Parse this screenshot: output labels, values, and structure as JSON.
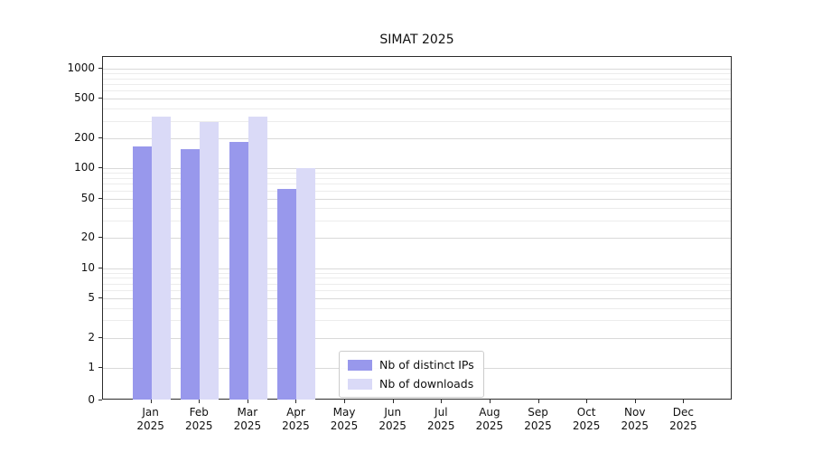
{
  "chart_data": {
    "type": "bar",
    "title": "SIMAT 2025",
    "categories": [
      "Jan",
      "Feb",
      "Mar",
      "Apr",
      "May",
      "Jun",
      "Jul",
      "Aug",
      "Sep",
      "Oct",
      "Nov",
      "Dec"
    ],
    "category_year": "2025",
    "series": [
      {
        "name": "Nb of distinct IPs",
        "color": "#9898ec",
        "values": [
          165,
          155,
          185,
          62,
          0,
          0,
          0,
          0,
          0,
          0,
          0,
          0
        ]
      },
      {
        "name": "Nb of downloads",
        "color": "#dadaf7",
        "values": [
          330,
          290,
          330,
          100,
          0,
          0,
          0,
          0,
          0,
          0,
          0,
          0
        ]
      }
    ],
    "yscale": "symlog",
    "ylabel": "",
    "xlabel": "",
    "yticks": [
      0,
      1,
      2,
      5,
      10,
      20,
      50,
      100,
      200,
      500,
      1000
    ],
    "yticks_minor": [
      3,
      4,
      6,
      7,
      8,
      9,
      30,
      40,
      60,
      70,
      80,
      90,
      300,
      400,
      600,
      700,
      800,
      900
    ],
    "ylim": [
      0,
      1300
    ],
    "grid": true,
    "legend_position": "lower center"
  }
}
